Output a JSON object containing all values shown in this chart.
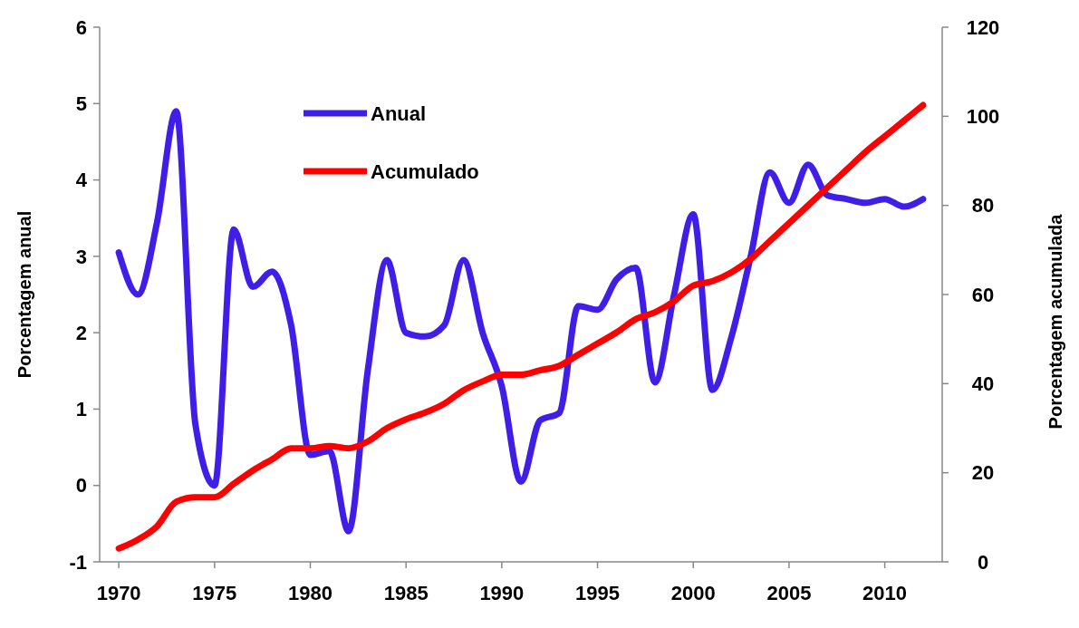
{
  "chart_data": {
    "type": "line",
    "ylabel": "Porcentagem anual",
    "y2label": "Porcentagem acumulada",
    "x": [
      1970,
      1971,
      1972,
      1973,
      1974,
      1975,
      1976,
      1977,
      1978,
      1979,
      1980,
      1981,
      1982,
      1983,
      1984,
      1985,
      1986,
      1987,
      1988,
      1989,
      1990,
      1991,
      1992,
      1993,
      1994,
      1995,
      1996,
      1997,
      1998,
      1999,
      2000,
      2001,
      2002,
      2003,
      2004,
      2005,
      2006,
      2007,
      2008,
      2009,
      2010,
      2011,
      2012
    ],
    "series": [
      {
        "name": "Anual",
        "color": "#3f1fe8",
        "values": [
          3.05,
          2.5,
          3.45,
          4.9,
          0.8,
          0.0,
          3.35,
          2.6,
          2.8,
          2.1,
          0.4,
          0.45,
          -0.6,
          1.5,
          2.95,
          2.0,
          1.95,
          2.1,
          2.95,
          2.0,
          1.3,
          0.05,
          0.85,
          0.95,
          2.35,
          2.3,
          2.7,
          2.85,
          1.35,
          2.5,
          3.55,
          1.25,
          1.95,
          3.0,
          4.1,
          3.7,
          4.2,
          3.8,
          3.75,
          3.7,
          3.75,
          3.65,
          3.75
        ]
      },
      {
        "name": "Acumulado",
        "color": "#ff0000",
        "axis": "y2",
        "values": [
          3,
          5,
          8,
          13.5,
          14.5,
          14.5,
          17.5,
          20.5,
          23,
          25.5,
          25.5,
          26,
          25.5,
          27,
          30,
          32,
          33.5,
          35.5,
          38.5,
          40.5,
          42,
          42,
          43,
          44,
          46.5,
          49,
          51.5,
          54.5,
          56,
          58.5,
          62,
          63,
          65,
          68,
          72,
          76,
          80,
          84,
          88,
          92,
          95.5,
          99,
          102.5
        ]
      }
    ],
    "xlim": [
      1969,
      2013
    ],
    "xticks": [
      1970,
      1975,
      1980,
      1985,
      1990,
      1995,
      2000,
      2005,
      2010
    ],
    "ylim": [
      -1,
      6
    ],
    "yticks": [
      -1,
      0,
      1,
      2,
      3,
      4,
      5,
      6
    ],
    "y2lim": [
      0,
      120
    ],
    "y2ticks": [
      0,
      20,
      40,
      60,
      80,
      100,
      120
    ],
    "legend": "top left",
    "grid": false,
    "marker": "none",
    "line_style": "solid"
  }
}
